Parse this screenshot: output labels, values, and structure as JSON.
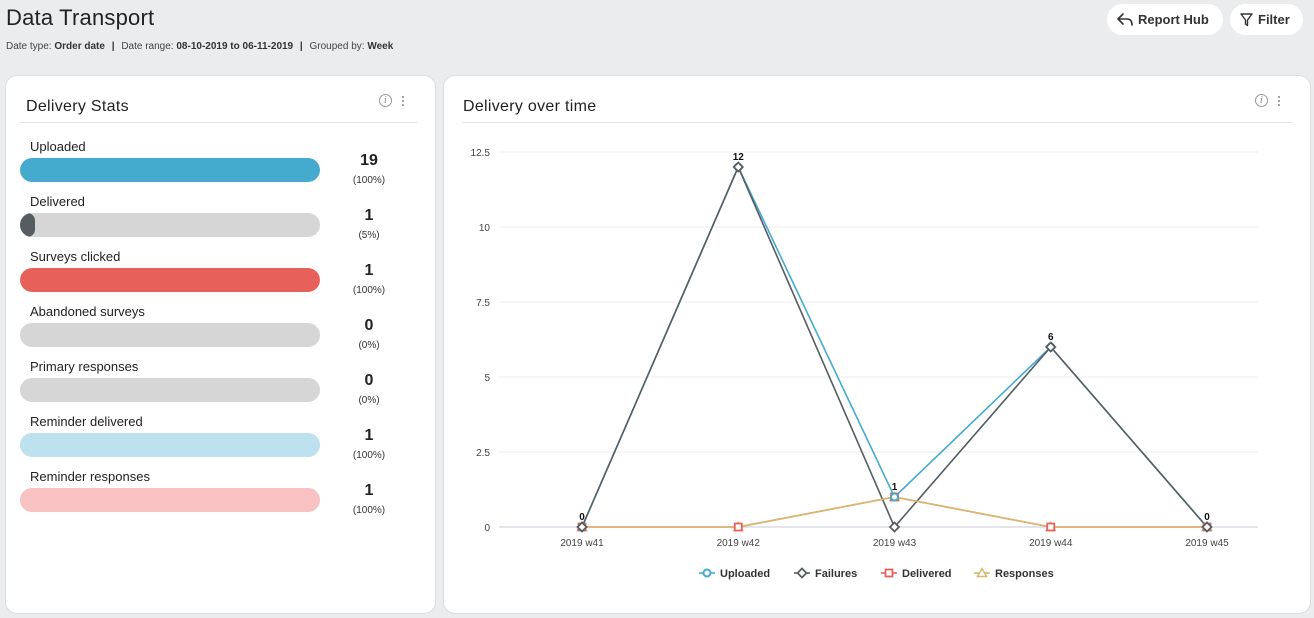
{
  "header": {
    "title": "Data Transport",
    "meta": {
      "date_type_label": "Date type:",
      "date_type_value": "Order date",
      "date_range_label": "Date range:",
      "date_range_value": "08-10-2019 to 06-11-2019",
      "grouped_by_label": "Grouped by:",
      "grouped_by_value": "Week",
      "separator": "|"
    },
    "buttons": {
      "report_hub": "Report Hub",
      "filter": "Filter"
    }
  },
  "stats_card": {
    "title": "Delivery Stats",
    "info_symbol": "i",
    "rows": [
      {
        "label": "Uploaded",
        "value": "19",
        "pct": "(100%)",
        "fill": 1.0,
        "color": "#45abce"
      },
      {
        "label": "Delivered",
        "value": "1",
        "pct": "(5%)",
        "fill": 0.05,
        "color": "#555d61"
      },
      {
        "label": "Surveys clicked",
        "value": "1",
        "pct": "(100%)",
        "fill": 1.0,
        "color": "#e8605a"
      },
      {
        "label": "Abandoned surveys",
        "value": "0",
        "pct": "(0%)",
        "fill": 0.0,
        "color": "#d6d6d6"
      },
      {
        "label": "Primary responses",
        "value": "0",
        "pct": "(0%)",
        "fill": 0.0,
        "color": "#d6d6d6"
      },
      {
        "label": "Reminder delivered",
        "value": "1",
        "pct": "(100%)",
        "fill": 1.0,
        "color": "#bde1ee"
      },
      {
        "label": "Reminder responses",
        "value": "1",
        "pct": "(100%)",
        "fill": 1.0,
        "color": "#f7c2c1"
      }
    ]
  },
  "chart_card": {
    "title": "Delivery over time",
    "info_symbol": "i"
  },
  "chart_data": {
    "type": "line",
    "title": "Delivery over time",
    "categories": [
      "2019 w41",
      "2019 w42",
      "2019 w43",
      "2019 w44",
      "2019 w45"
    ],
    "ylim": [
      0,
      12.5
    ],
    "yticks": [
      "0",
      "2.5",
      "5",
      "7.5",
      "10",
      "12.5"
    ],
    "ytick_values": [
      0,
      2.5,
      5,
      7.5,
      10,
      12.5
    ],
    "data_labels": [
      "0",
      "12",
      "1",
      "6",
      "0"
    ],
    "data_label_values": [
      0,
      12,
      1,
      6,
      0
    ],
    "series": [
      {
        "name": "Uploaded",
        "values": [
          0,
          12,
          1,
          6,
          0
        ],
        "color": "#45abce",
        "marker": "circle"
      },
      {
        "name": "Failures",
        "values": [
          0,
          12,
          0,
          6,
          0
        ],
        "color": "#555d61",
        "marker": "diamond"
      },
      {
        "name": "Delivered",
        "values": [
          0,
          0,
          1,
          0,
          0
        ],
        "color": "#e8605a",
        "marker": "square"
      },
      {
        "name": "Responses",
        "values": [
          0,
          0,
          1,
          0,
          0
        ],
        "color": "#d7b86e",
        "marker": "triangle"
      }
    ],
    "grid": true,
    "legend": "bottom"
  }
}
